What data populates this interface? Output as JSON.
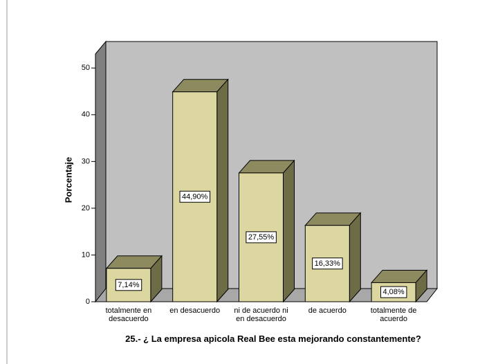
{
  "chart_data": {
    "type": "bar3d",
    "title": "25.- ¿ La empresa apicola Real Bee esta mejorando constantemente?",
    "y_label": "Porcentaje",
    "categories": [
      "totalmente en desacuerdo",
      "en desacuerdo",
      "ni de acuerdo ni en desacuerdo",
      "de acuerdo",
      "totalmente de acuerdo"
    ],
    "values": [
      7.14,
      44.9,
      27.55,
      16.33,
      4.08
    ],
    "value_labels": [
      "7,14%",
      "44,90%",
      "27,55%",
      "16,33%",
      "4,08%"
    ],
    "color": "#dcd6a0",
    "ylim": [
      0,
      53
    ],
    "yticks": [
      0,
      10,
      20,
      30,
      40,
      50
    ]
  }
}
